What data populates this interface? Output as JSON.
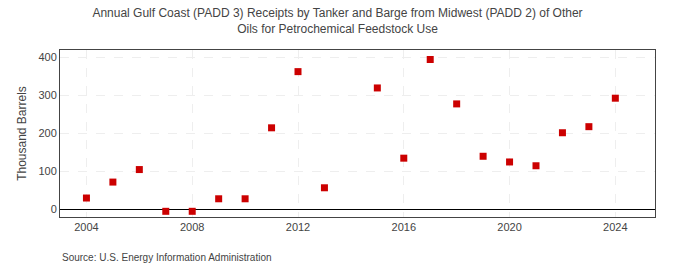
{
  "chart_data": {
    "type": "scatter",
    "title": "Annual Gulf Coast (PADD 3) Receipts by Tanker and Barge from Midwest (PADD 2) of Other\nOils for Petrochemical Feedstock Use",
    "ylabel": "Thousand Barrels",
    "source": "Source: U.S. Energy Information Administration",
    "x": [
      2004,
      2005,
      2006,
      2007,
      2008,
      2009,
      2010,
      2011,
      2012,
      2013,
      2015,
      2016,
      2017,
      2018,
      2019,
      2020,
      2021,
      2022,
      2023,
      2024
    ],
    "values": [
      30,
      72,
      105,
      -5,
      -5,
      28,
      28,
      215,
      363,
      57,
      320,
      135,
      395,
      278,
      140,
      125,
      115,
      202,
      218,
      293
    ],
    "color": "#cc0000",
    "marker": "square",
    "xlim": [
      2003,
      2025.5
    ],
    "xticks": [
      2004,
      2008,
      2012,
      2016,
      2020,
      2024
    ],
    "ylim": [
      -20,
      420
    ],
    "yticks": [
      0,
      100,
      200,
      300,
      400
    ],
    "grid": true
  }
}
